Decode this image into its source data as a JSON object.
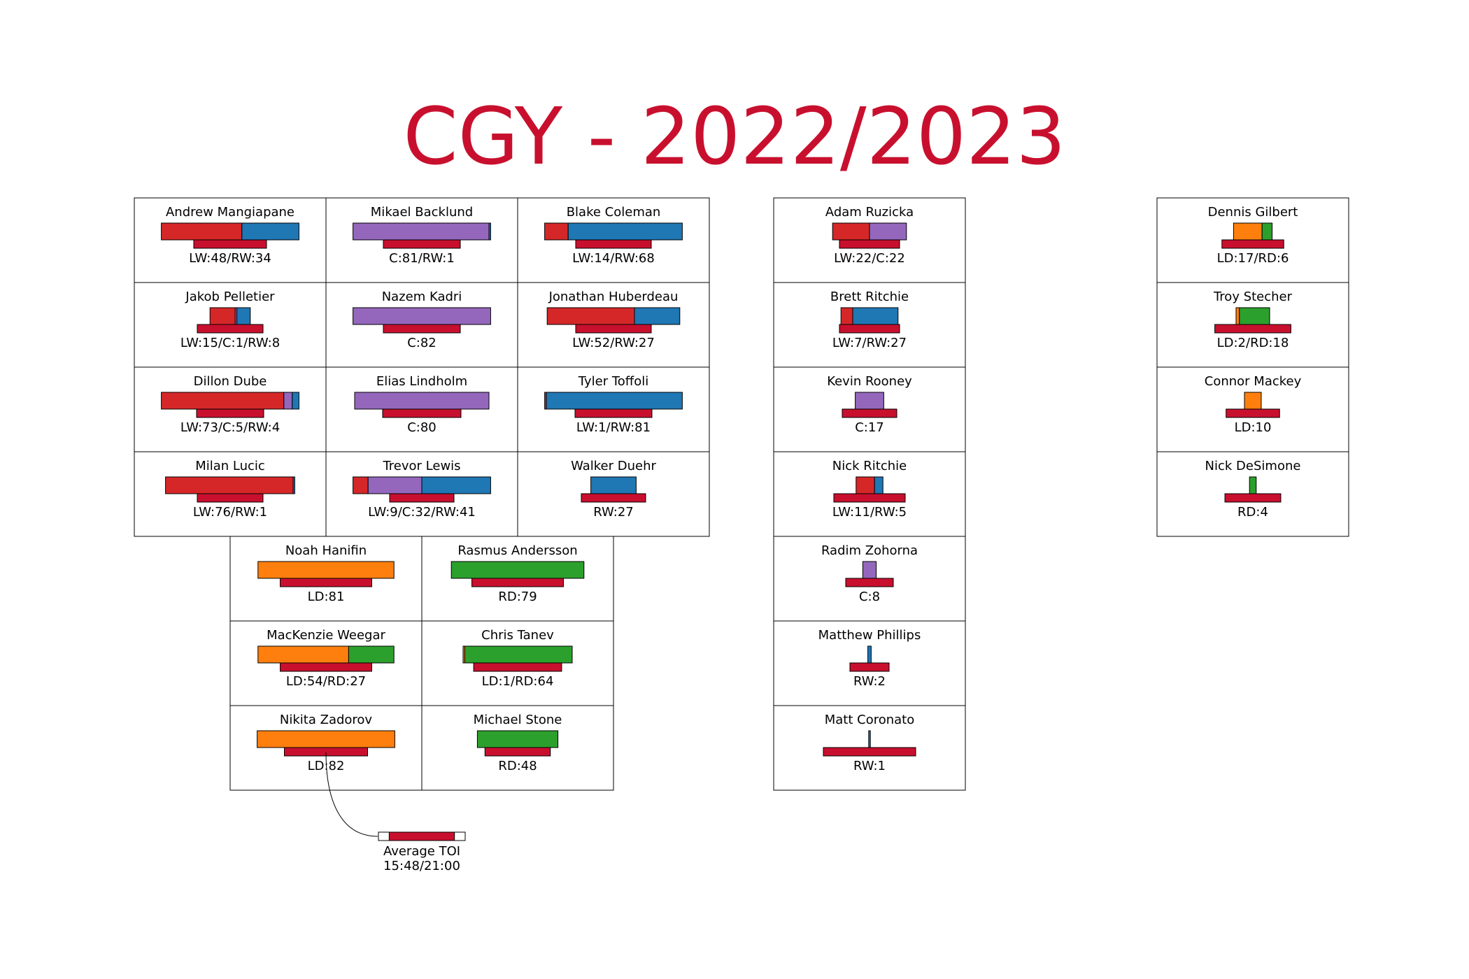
{
  "title": "CGY - 2022/2023",
  "colors": {
    "LW": "#d62728",
    "C": "#9467bd",
    "RW": "#1f77b4",
    "LD": "#ff7f0e",
    "RD": "#2ca02c",
    "toi": "#C8102E",
    "title": "#C8102E"
  },
  "players": [
    {
      "name": "Andrew Mangiapane",
      "label": "LW:48/RW:34",
      "games": {
        "LW": 48,
        "RW": 34
      },
      "toi_ratio": 0.52
    },
    {
      "name": "Mikael Backlund",
      "label": "C:81/RW:1",
      "games": {
        "C": 81,
        "RW": 1
      },
      "toi_ratio": 0.55
    },
    {
      "name": "Blake Coleman",
      "label": "LW:14/RW:68",
      "games": {
        "LW": 14,
        "RW": 68
      },
      "toi_ratio": 0.54
    },
    {
      "name": "Jakob Pelletier",
      "label": "LW:15/C:1/RW:8",
      "games": {
        "LW": 15,
        "C": 1,
        "RW": 8
      },
      "toi_ratio": 0.47
    },
    {
      "name": "Nazem Kadri",
      "label": "C:82",
      "games": {
        "C": 82
      },
      "toi_ratio": 0.55
    },
    {
      "name": "Jonathan Huberdeau",
      "label": "LW:52/RW:27",
      "games": {
        "LW": 52,
        "RW": 27
      },
      "toi_ratio": 0.54
    },
    {
      "name": "Dillon Dube",
      "label": "LW:73/C:5/RW:4",
      "games": {
        "LW": 73,
        "C": 5,
        "RW": 4
      },
      "toi_ratio": 0.48
    },
    {
      "name": "Elias Lindholm",
      "label": "C:80",
      "games": {
        "C": 80
      },
      "toi_ratio": 0.56
    },
    {
      "name": "Tyler Toffoli",
      "label": "LW:1/RW:81",
      "games": {
        "LW": 1,
        "RW": 81
      },
      "toi_ratio": 0.55
    },
    {
      "name": "Milan Lucic",
      "label": "LW:76/RW:1",
      "games": {
        "LW": 76,
        "RW": 1
      },
      "toi_ratio": 0.47
    },
    {
      "name": "Trevor Lewis",
      "label": "LW:9/C:32/RW:41",
      "games": {
        "LW": 9,
        "C": 32,
        "RW": 41
      },
      "toi_ratio": 0.46
    },
    {
      "name": "Walker Duehr",
      "label": "RW:27",
      "games": {
        "RW": 27
      },
      "toi_ratio": 0.46
    },
    {
      "name": "Noah Hanifin",
      "label": "LD:81",
      "games": {
        "LD": 81
      },
      "toi_ratio": 0.77
    },
    {
      "name": "Rasmus Andersson",
      "label": "RD:79",
      "games": {
        "RD": 79
      },
      "toi_ratio": 0.77
    },
    {
      "name": "MacKenzie Weegar",
      "label": "LD:54/RD:27",
      "games": {
        "LD": 54,
        "RD": 27
      },
      "toi_ratio": 0.77
    },
    {
      "name": "Chris Tanev",
      "label": "LD:1/RD:64",
      "games": {
        "LD": 1,
        "RD": 64
      },
      "toi_ratio": 0.74
    },
    {
      "name": "Nikita Zadorov",
      "label": "LD:82",
      "games": {
        "LD": 82
      },
      "toi_ratio": 0.7
    },
    {
      "name": "Michael Stone",
      "label": "RD:48",
      "games": {
        "RD": 48
      },
      "toi_ratio": 0.55
    },
    {
      "name": "Adam Ruzicka",
      "label": "LW:22/C:22",
      "games": {
        "LW": 22,
        "C": 22
      },
      "toi_ratio": 0.43
    },
    {
      "name": "Brett Ritchie",
      "label": "LW:7/RW:27",
      "games": {
        "LW": 7,
        "RW": 27
      },
      "toi_ratio": 0.43
    },
    {
      "name": "Kevin Rooney",
      "label": "C:17",
      "games": {
        "C": 17
      },
      "toi_ratio": 0.39
    },
    {
      "name": "Nick Ritchie",
      "label": "LW:11/RW:5",
      "games": {
        "LW": 11,
        "RW": 5
      },
      "toi_ratio": 0.51
    },
    {
      "name": "Radim Zohorna",
      "label": "C:8",
      "games": {
        "C": 8
      },
      "toi_ratio": 0.34
    },
    {
      "name": "Matthew Phillips",
      "label": "RW:2",
      "games": {
        "RW": 2
      },
      "toi_ratio": 0.28
    },
    {
      "name": "Matt Coronato",
      "label": "RW:1",
      "games": {
        "RW": 1
      },
      "toi_ratio": 0.66
    },
    {
      "name": "Dennis Gilbert",
      "label": "LD:17/RD:6",
      "games": {
        "LD": 17,
        "RD": 6
      },
      "toi_ratio": 0.52
    },
    {
      "name": "Troy Stecher",
      "label": "LD:2/RD:18",
      "games": {
        "LD": 2,
        "RD": 18
      },
      "toi_ratio": 0.64
    },
    {
      "name": "Connor Mackey",
      "label": "LD:10",
      "games": {
        "LD": 10
      },
      "toi_ratio": 0.45
    },
    {
      "name": "Nick DeSimone",
      "label": "RD:4",
      "games": {
        "RD": 4
      },
      "toi_ratio": 0.47
    }
  ],
  "legend": {
    "label": "Average TOI",
    "value": "15:48/21:00",
    "toi_ratio": 0.7524
  }
}
